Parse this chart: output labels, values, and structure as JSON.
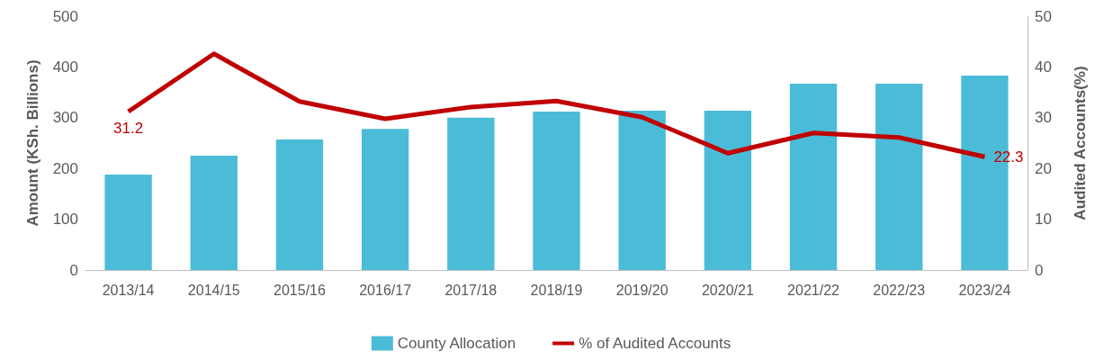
{
  "chart_data": {
    "type": "bar",
    "categories": [
      "2013/14",
      "2014/15",
      "2015/16",
      "2016/17",
      "2017/18",
      "2018/19",
      "2019/20",
      "2020/21",
      "2021/22",
      "2022/23",
      "2023/24"
    ],
    "ylabel": "Amount (KSh. Billions)",
    "y2label": "Audited Accounts(%)",
    "ylim": [
      0,
      500
    ],
    "yticks": [
      0,
      100,
      200,
      300,
      400,
      500
    ],
    "y2lim": [
      0,
      50
    ],
    "y2ticks": [
      0,
      10,
      20,
      30,
      40,
      50
    ],
    "legend": "bottom",
    "series": [
      {
        "name": "County Allocation",
        "color": "#4bbcd7",
        "values": [
          188,
          225,
          257,
          278,
          300,
          312,
          314,
          314,
          367,
          367,
          383
        ]
      },
      {
        "name": "% of Audited Accounts",
        "type": "line",
        "axis": "y2",
        "color": "#c00000",
        "marker": "none",
        "values": [
          31.2,
          42.6,
          33.2,
          29.8,
          32.1,
          33.3,
          30.1,
          23.0,
          27.0,
          26.1,
          22.3
        ],
        "value_labels": [
          "31.2",
          null,
          null,
          null,
          null,
          null,
          null,
          null,
          null,
          null,
          "22.3"
        ]
      }
    ]
  }
}
